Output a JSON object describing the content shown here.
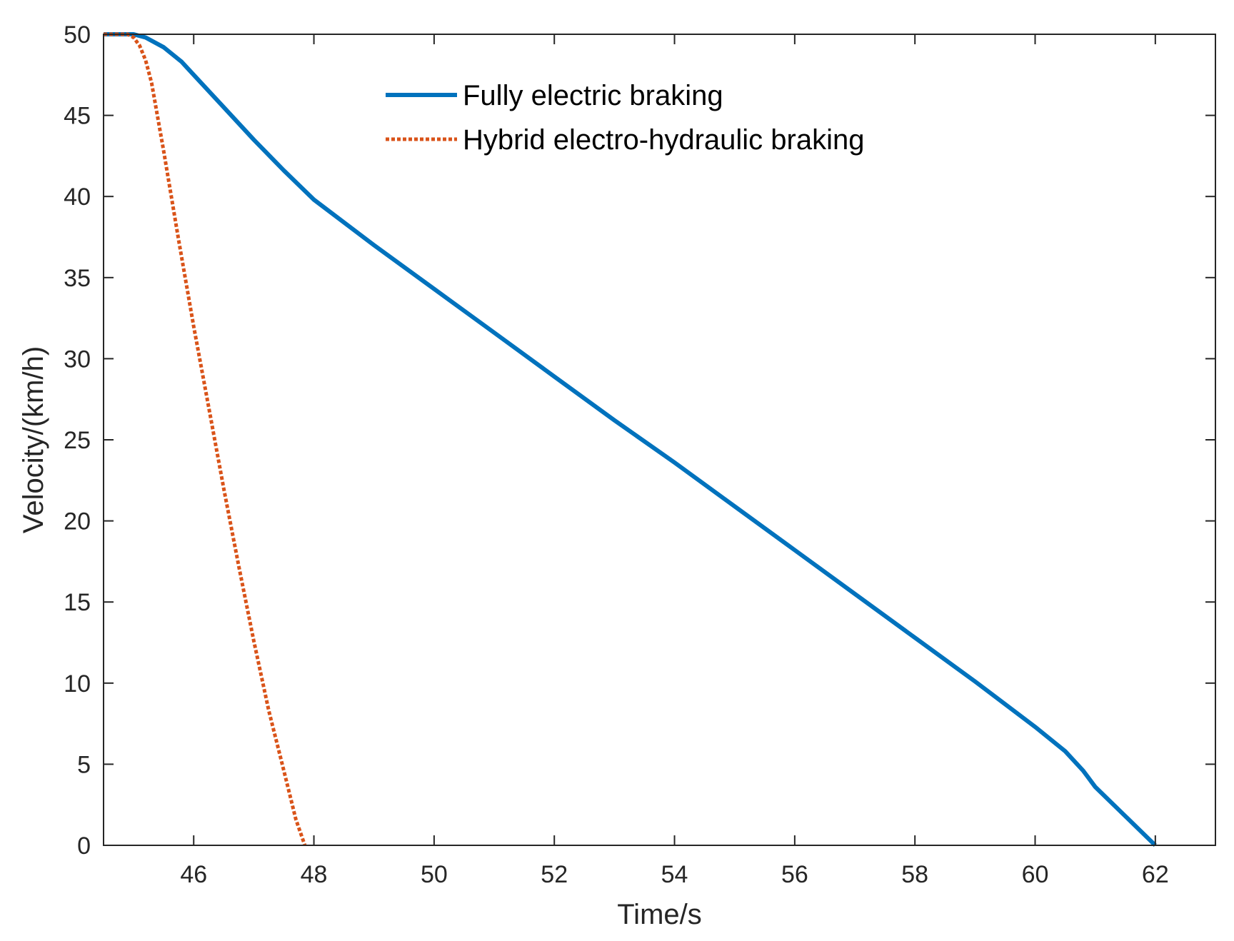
{
  "chart_data": {
    "type": "line",
    "xlabel": "Time/s",
    "ylabel": "Velocity/(km/h)",
    "xlim": [
      44.5,
      63
    ],
    "ylim": [
      0,
      50
    ],
    "x_ticks": [
      46,
      48,
      50,
      52,
      54,
      56,
      58,
      60,
      62
    ],
    "y_ticks": [
      0,
      5,
      10,
      15,
      20,
      25,
      30,
      35,
      40,
      45,
      50
    ],
    "grid": false,
    "legend_position": "top-center",
    "series": [
      {
        "name": "Fully electric braking",
        "color": "#0072BD",
        "style": "solid",
        "x": [
          44.5,
          45.0,
          45.2,
          45.5,
          45.8,
          46.0,
          46.5,
          47.0,
          47.5,
          48.0,
          49.0,
          50.0,
          51.0,
          52.0,
          53.0,
          54.0,
          55.0,
          56.0,
          57.0,
          58.0,
          59.0,
          60.0,
          60.5,
          60.8,
          61.0,
          61.5,
          62.0
        ],
        "y": [
          50,
          50,
          49.8,
          49.2,
          48.3,
          47.5,
          45.5,
          43.5,
          41.6,
          39.8,
          37.0,
          34.3,
          31.6,
          28.9,
          26.2,
          23.6,
          20.9,
          18.2,
          15.5,
          12.8,
          10.1,
          7.3,
          5.8,
          4.6,
          3.6,
          1.8,
          0
        ]
      },
      {
        "name": "Hybrid electro-hydraulic braking",
        "color": "#D95319",
        "style": "dotted",
        "x": [
          44.5,
          44.9,
          45.0,
          45.1,
          45.2,
          45.3,
          45.5,
          45.75,
          46.0,
          46.25,
          46.5,
          46.75,
          47.0,
          47.25,
          47.5,
          47.7,
          47.85
        ],
        "y": [
          50,
          50,
          49.8,
          49.3,
          48.4,
          47.0,
          42.8,
          37.3,
          32.0,
          27.0,
          22.0,
          17.2,
          12.6,
          8.3,
          4.6,
          1.6,
          0
        ]
      }
    ]
  }
}
